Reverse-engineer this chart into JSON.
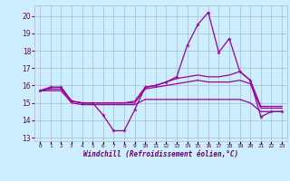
{
  "x": [
    0,
    1,
    2,
    3,
    4,
    5,
    6,
    7,
    8,
    9,
    10,
    11,
    12,
    13,
    14,
    15,
    16,
    17,
    18,
    19,
    20,
    21,
    22,
    23
  ],
  "line1": [
    15.7,
    15.9,
    15.9,
    15.1,
    15.0,
    15.0,
    14.3,
    13.4,
    13.4,
    14.6,
    15.9,
    16.0,
    16.2,
    16.5,
    18.3,
    19.5,
    20.2,
    17.9,
    18.7,
    16.8,
    16.3,
    14.2,
    14.5,
    14.5
  ],
  "line2": [
    15.7,
    15.9,
    15.9,
    15.1,
    15.0,
    15.0,
    15.0,
    15.0,
    15.0,
    15.1,
    15.9,
    16.0,
    16.2,
    16.4,
    16.5,
    16.6,
    16.5,
    16.5,
    16.6,
    16.8,
    16.3,
    14.8,
    14.8,
    14.8
  ],
  "line3": [
    15.7,
    15.8,
    15.8,
    15.1,
    15.0,
    15.0,
    15.0,
    15.0,
    15.0,
    15.0,
    15.8,
    15.9,
    16.0,
    16.1,
    16.2,
    16.3,
    16.2,
    16.2,
    16.2,
    16.3,
    16.1,
    14.7,
    14.7,
    14.7
  ],
  "line4": [
    15.7,
    15.7,
    15.7,
    15.0,
    14.9,
    14.9,
    14.9,
    14.9,
    14.9,
    14.9,
    15.2,
    15.2,
    15.2,
    15.2,
    15.2,
    15.2,
    15.2,
    15.2,
    15.2,
    15.2,
    15.0,
    14.5,
    14.5,
    14.5
  ],
  "color": "#990099",
  "bg_color": "#cceeff",
  "grid_color": "#aabbcc",
  "xlabel": "Windchill (Refroidissement éolien,°C)",
  "xlim": [
    -0.5,
    23.5
  ],
  "ylim": [
    12.8,
    20.6
  ],
  "yticks": [
    13,
    14,
    15,
    16,
    17,
    18,
    19,
    20
  ],
  "xticks": [
    0,
    1,
    2,
    3,
    4,
    5,
    6,
    7,
    8,
    9,
    10,
    11,
    12,
    13,
    14,
    15,
    16,
    17,
    18,
    19,
    20,
    21,
    22,
    23
  ]
}
